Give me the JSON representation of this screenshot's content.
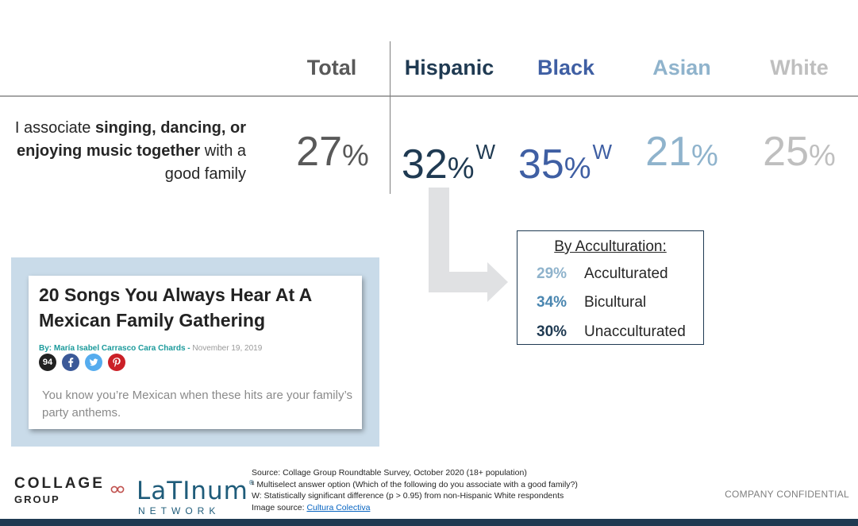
{
  "headers": {
    "total": "Total",
    "hispanic": "Hispanic",
    "black": "Black",
    "asian": "Asian",
    "white": "White"
  },
  "statement": {
    "prefix": "I associate ",
    "bold": "singing, dancing, or enjoying music together",
    "suffix": " with a good family"
  },
  "values": {
    "total": {
      "num": "27",
      "unit": "%",
      "sig": ""
    },
    "hispanic": {
      "num": "32",
      "unit": "%",
      "sig": "W"
    },
    "black": {
      "num": "35",
      "unit": "%",
      "sig": "W"
    },
    "asian": {
      "num": "21",
      "unit": "%",
      "sig": ""
    },
    "white": {
      "num": "25",
      "unit": "%",
      "sig": ""
    }
  },
  "colors": {
    "total": "#595959",
    "hispanic": "#1f3a52",
    "black": "#3f5fa3",
    "asian": "#8fb3cc",
    "white": "#bfbfbf",
    "acc_acculturated": "#8fb3cc",
    "acc_bicultural": "#4a86b0",
    "acc_unacculturated": "#1f3a52"
  },
  "acculturation": {
    "title": "By Acculturation:",
    "rows": [
      {
        "value": "29%",
        "label": "Acculturated"
      },
      {
        "value": "34%",
        "label": "Bicultural"
      },
      {
        "value": "30%",
        "label": "Unacculturated"
      }
    ]
  },
  "article": {
    "title": "20 Songs You Always Hear At A Mexican Family Gathering",
    "byline": "By: María Isabel Carrasco Cara Chards",
    "separator": " - ",
    "date": "November 19, 2019",
    "share_count": "94",
    "subtitle": "You know you’re Mexican when these hits are your family’s party anthems.",
    "icons": [
      "facebook-icon",
      "twitter-icon",
      "pinterest-icon"
    ]
  },
  "footer": {
    "collage_line1": "COLLAGE",
    "collage_line2": "GROUP",
    "latinum_line1": "LaTInum",
    "latinum_reg": "®",
    "latinum_line2": "NETWORK",
    "source_lines": [
      "Source: Collage Group Roundtable Survey, October 2020 (18+ population)",
      "¹ Multiselect answer option (Which of the following do you associate with a good family?)",
      "W: Statistically significant difference (p > 0.95) from non-Hispanic White respondents"
    ],
    "image_source_label": "Image source: ",
    "image_source_link": "Cultura Colectiva",
    "confidential": "COMPANY CONFIDENTIAL"
  }
}
